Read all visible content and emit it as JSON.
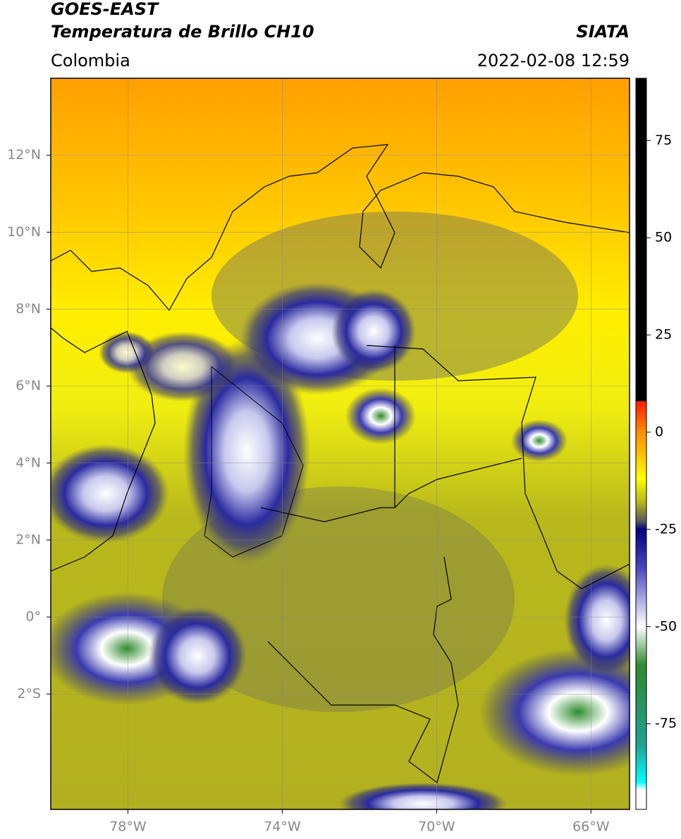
{
  "header": {
    "title": "GOES-EAST",
    "subtitle": "Temperatura de Brillo CH10",
    "source": "SIATA",
    "region": "Colombia",
    "datetime": "2022-02-08 12:59"
  },
  "map": {
    "xlim": [
      -80,
      -65
    ],
    "ylim": [
      -5,
      14
    ],
    "xticks": [
      {
        "value": -78,
        "label": "78°W"
      },
      {
        "value": -74,
        "label": "74°W"
      },
      {
        "value": -70,
        "label": "70°W"
      },
      {
        "value": -66,
        "label": "66°W"
      }
    ],
    "yticks": [
      {
        "value": 12,
        "label": "12°N"
      },
      {
        "value": 10,
        "label": "10°N"
      },
      {
        "value": 8,
        "label": "8°N"
      },
      {
        "value": 6,
        "label": "6°N"
      },
      {
        "value": 4,
        "label": "4°N"
      },
      {
        "value": 2,
        "label": "2°N"
      },
      {
        "value": 0,
        "label": "0°"
      },
      {
        "value": -2,
        "label": "2°S"
      }
    ],
    "grid": true
  },
  "colorbar": {
    "lim": [
      -97,
      91
    ],
    "ticks": [
      75,
      50,
      25,
      0,
      -25,
      -50,
      -75
    ],
    "colormap": [
      {
        "value": 91,
        "color": "#000000"
      },
      {
        "value": 8,
        "color": "#000000"
      },
      {
        "value": 8,
        "color": "#ff1a00"
      },
      {
        "value": 0,
        "color": "#ff8c00"
      },
      {
        "value": -12,
        "color": "#ffff00"
      },
      {
        "value": -18,
        "color": "#b5b51a"
      },
      {
        "value": -23,
        "color": "#555560"
      },
      {
        "value": -25,
        "color": "#000080"
      },
      {
        "value": -35,
        "color": "#4848c0"
      },
      {
        "value": -50,
        "color": "#ffffff"
      },
      {
        "value": -60,
        "color": "#2e8b2e"
      },
      {
        "value": -80,
        "color": "#20a090"
      },
      {
        "value": -90,
        "color": "#00ffff"
      },
      {
        "value": -92,
        "color": "#ffffff"
      },
      {
        "value": -97,
        "color": "#ffffff"
      }
    ]
  }
}
